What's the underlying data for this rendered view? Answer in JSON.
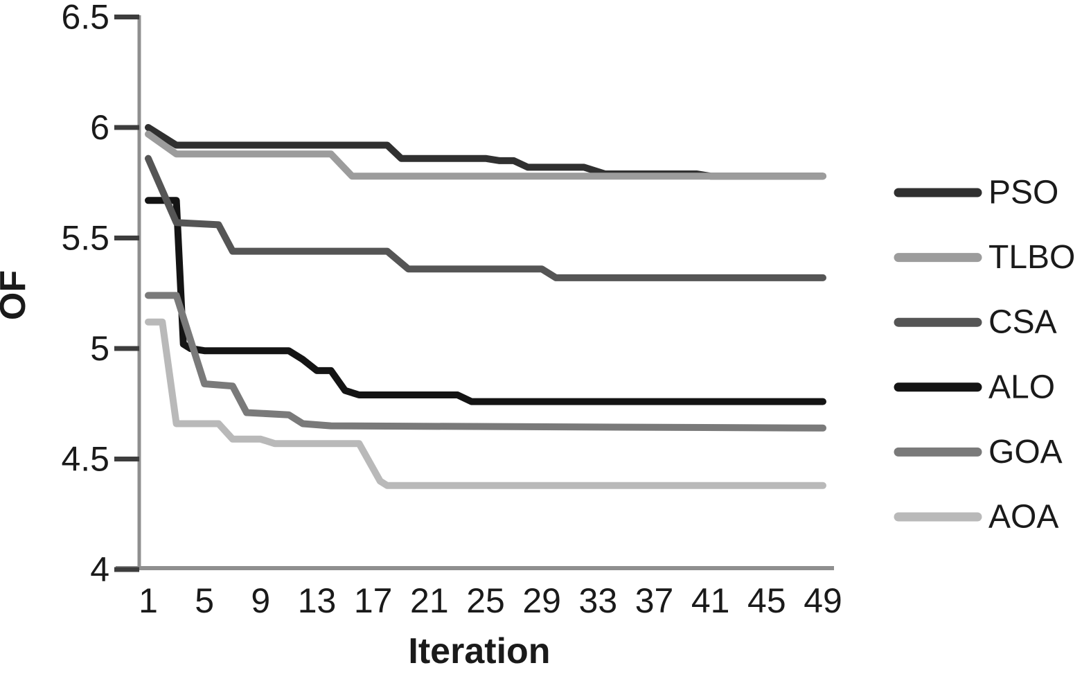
{
  "figure": {
    "xlabel": "Iteration",
    "ylabel": "OF"
  },
  "chart_data": {
    "type": "line",
    "title": "",
    "xlabel": "Iteration",
    "ylabel": "OF",
    "xlim": [
      1,
      49
    ],
    "ylim": [
      4,
      6.5
    ],
    "x_tick_values": [
      1,
      5,
      9,
      13,
      17,
      21,
      25,
      29,
      33,
      37,
      41,
      45,
      49
    ],
    "x_tick_labels": [
      "1",
      "5",
      "9",
      "13",
      "17",
      "21",
      "25",
      "29",
      "33",
      "37",
      "41",
      "45",
      "49"
    ],
    "y_tick_values": [
      4,
      4.5,
      5,
      5.5,
      6,
      6.5
    ],
    "y_tick_labels": [
      "4",
      "4.5",
      "5",
      "5.5",
      "6",
      "6.5"
    ],
    "grid": false,
    "legend_position": "right",
    "legend_order": [
      "PSO",
      "TLBO",
      "CSA",
      "ALO",
      "GOA",
      "AOA"
    ],
    "axis_color": "#8f8f8f",
    "tick_color": "#3d3d3d",
    "text_color": "#1a1a1a",
    "series": [
      {
        "name": "PSO",
        "color": "#303030",
        "points": [
          [
            1,
            6.0
          ],
          [
            3,
            5.92
          ],
          [
            18,
            5.92
          ],
          [
            19,
            5.86
          ],
          [
            25,
            5.86
          ],
          [
            26,
            5.85
          ],
          [
            27,
            5.85
          ],
          [
            28,
            5.82
          ],
          [
            32,
            5.82
          ],
          [
            33.5,
            5.79
          ],
          [
            40,
            5.79
          ],
          [
            41,
            5.78
          ],
          [
            49,
            5.78
          ]
        ]
      },
      {
        "name": "TLBO",
        "color": "#9c9c9c",
        "points": [
          [
            1,
            5.97
          ],
          [
            3,
            5.88
          ],
          [
            14,
            5.88
          ],
          [
            15.5,
            5.78
          ],
          [
            49,
            5.78
          ]
        ]
      },
      {
        "name": "CSA",
        "color": "#555555",
        "points": [
          [
            1,
            5.86
          ],
          [
            3,
            5.57
          ],
          [
            6,
            5.56
          ],
          [
            7,
            5.44
          ],
          [
            18,
            5.44
          ],
          [
            19.5,
            5.36
          ],
          [
            29,
            5.36
          ],
          [
            30,
            5.32
          ],
          [
            49,
            5.32
          ]
        ]
      },
      {
        "name": "ALO",
        "color": "#141414",
        "points": [
          [
            1,
            5.67
          ],
          [
            3,
            5.67
          ],
          [
            3.5,
            5.02
          ],
          [
            4,
            5.0
          ],
          [
            5,
            4.99
          ],
          [
            11,
            4.99
          ],
          [
            12,
            4.95
          ],
          [
            13,
            4.9
          ],
          [
            14,
            4.9
          ],
          [
            15,
            4.81
          ],
          [
            16,
            4.79
          ],
          [
            23,
            4.79
          ],
          [
            24,
            4.76
          ],
          [
            49,
            4.76
          ]
        ]
      },
      {
        "name": "GOA",
        "color": "#7a7a7a",
        "points": [
          [
            1,
            5.24
          ],
          [
            3,
            5.24
          ],
          [
            5,
            4.84
          ],
          [
            7,
            4.83
          ],
          [
            8,
            4.71
          ],
          [
            11,
            4.7
          ],
          [
            12,
            4.66
          ],
          [
            14,
            4.65
          ],
          [
            49,
            4.64
          ]
        ]
      },
      {
        "name": "AOA",
        "color": "#b9b9b9",
        "points": [
          [
            1,
            5.12
          ],
          [
            2,
            5.12
          ],
          [
            3,
            4.66
          ],
          [
            6,
            4.66
          ],
          [
            7,
            4.59
          ],
          [
            9,
            4.59
          ],
          [
            10,
            4.57
          ],
          [
            16,
            4.57
          ],
          [
            17.5,
            4.4
          ],
          [
            18,
            4.38
          ],
          [
            49,
            4.38
          ]
        ]
      }
    ]
  }
}
